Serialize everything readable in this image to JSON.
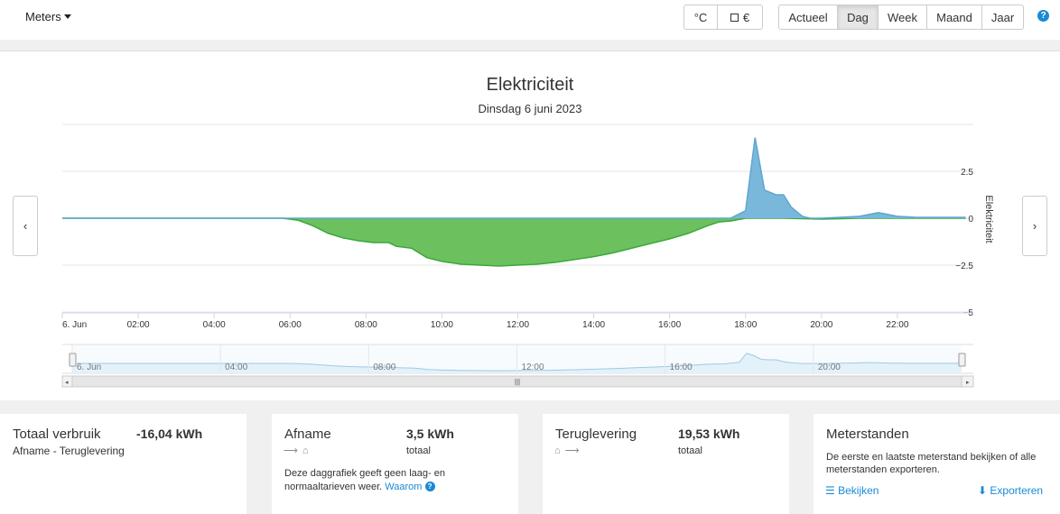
{
  "toolbar": {
    "meters_label": "Meters",
    "unit_buttons": [
      "°C",
      "€"
    ],
    "period_buttons": [
      "Actueel",
      "Dag",
      "Week",
      "Maand",
      "Jaar"
    ],
    "active_period": "Dag",
    "help_label": "?"
  },
  "nav": {
    "prev": "‹",
    "next": "›"
  },
  "chart_data": {
    "type": "area",
    "title": "Elektriciteit",
    "subtitle": "Dinsdag 6 juni 2023",
    "ylabel": "Elektriciteit",
    "ylim": [
      -5,
      5
    ],
    "yticks": [
      {
        "v": 2.5,
        "label": "2.5"
      },
      {
        "v": 0,
        "label": "0"
      },
      {
        "v": -2.5,
        "label": "−2.5"
      },
      {
        "v": -5,
        "label": "−5"
      }
    ],
    "xlim": [
      0,
      24
    ],
    "xticks": [
      {
        "v": 0,
        "label": "6. Jun"
      },
      {
        "v": 2,
        "label": "02:00"
      },
      {
        "v": 4,
        "label": "04:00"
      },
      {
        "v": 6,
        "label": "06:00"
      },
      {
        "v": 8,
        "label": "08:00"
      },
      {
        "v": 10,
        "label": "10:00"
      },
      {
        "v": 12,
        "label": "12:00"
      },
      {
        "v": 14,
        "label": "14:00"
      },
      {
        "v": 16,
        "label": "16:00"
      },
      {
        "v": 18,
        "label": "18:00"
      },
      {
        "v": 20,
        "label": "20:00"
      },
      {
        "v": 22,
        "label": "22:00"
      }
    ],
    "series": [
      {
        "color": "#6cc15e",
        "x": [
          0,
          1,
          2,
          3,
          4,
          5,
          5.8,
          6.2,
          6.6,
          7.0,
          7.4,
          7.8,
          8.2,
          8.6,
          8.8,
          9.2,
          9.6,
          10,
          10.5,
          11,
          11.5,
          12,
          12.5,
          13,
          13.5,
          14,
          14.5,
          15,
          15.5,
          16,
          16.5,
          17,
          17.3,
          17.6,
          18,
          19,
          20,
          21,
          22,
          23,
          23.8
        ],
        "y": [
          0,
          0,
          0,
          0,
          0,
          0,
          0,
          -0.1,
          -0.4,
          -0.8,
          -1.05,
          -1.2,
          -1.3,
          -1.3,
          -1.5,
          -1.6,
          -2.1,
          -2.3,
          -2.45,
          -2.5,
          -2.55,
          -2.5,
          -2.45,
          -2.35,
          -2.2,
          -2.05,
          -1.85,
          -1.6,
          -1.35,
          -1.1,
          -0.8,
          -0.4,
          -0.2,
          -0.15,
          0,
          0,
          -0.05,
          0,
          0,
          0,
          0
        ]
      },
      {
        "color": "#7ab8db",
        "x": [
          0,
          17.6,
          18.0,
          18.25,
          18.5,
          18.8,
          19.0,
          19.2,
          19.5,
          19.7,
          20,
          21,
          21.5,
          22,
          22.5,
          23,
          23.8
        ],
        "y": [
          0,
          0,
          0.4,
          4.3,
          1.5,
          1.25,
          1.25,
          0.6,
          0.1,
          0,
          0,
          0.1,
          0.3,
          0.1,
          0.05,
          0.05,
          0.05
        ]
      }
    ],
    "navigator_labels": [
      {
        "v": 0,
        "label": "6. Jun"
      },
      {
        "v": 4,
        "label": "04:00"
      },
      {
        "v": 8,
        "label": "08:00"
      },
      {
        "v": 12,
        "label": "12:00"
      },
      {
        "v": 16,
        "label": "16:00"
      },
      {
        "v": 20,
        "label": "20:00"
      }
    ]
  },
  "cards": {
    "totaal": {
      "title": "Totaal verbruik",
      "value": "-16,04 kWh",
      "sub": "Afname - Teruglevering",
      "value_color": "#3a87b8"
    },
    "afname": {
      "title": "Afname",
      "value": "3,5 kWh",
      "unit": "totaal",
      "arrows": "⟶ ⌂",
      "desc1": "Deze daggrafiek geeft geen laag- en",
      "desc2": "normaaltarieven weer.",
      "link": "Waarom",
      "value_color": "#3a87b8"
    },
    "teruglevering": {
      "title": "Teruglevering",
      "value": "19,53 kWh",
      "unit": "totaal",
      "arrows": "⌂ ⟶",
      "value_color": "#3f9e3f"
    },
    "meterstanden": {
      "title": "Meterstanden",
      "desc1": "De eerste en laatste meterstand bekijken of alle",
      "desc2": "meterstanden exporteren.",
      "view": "Bekijken",
      "export": "Exporteren"
    }
  }
}
